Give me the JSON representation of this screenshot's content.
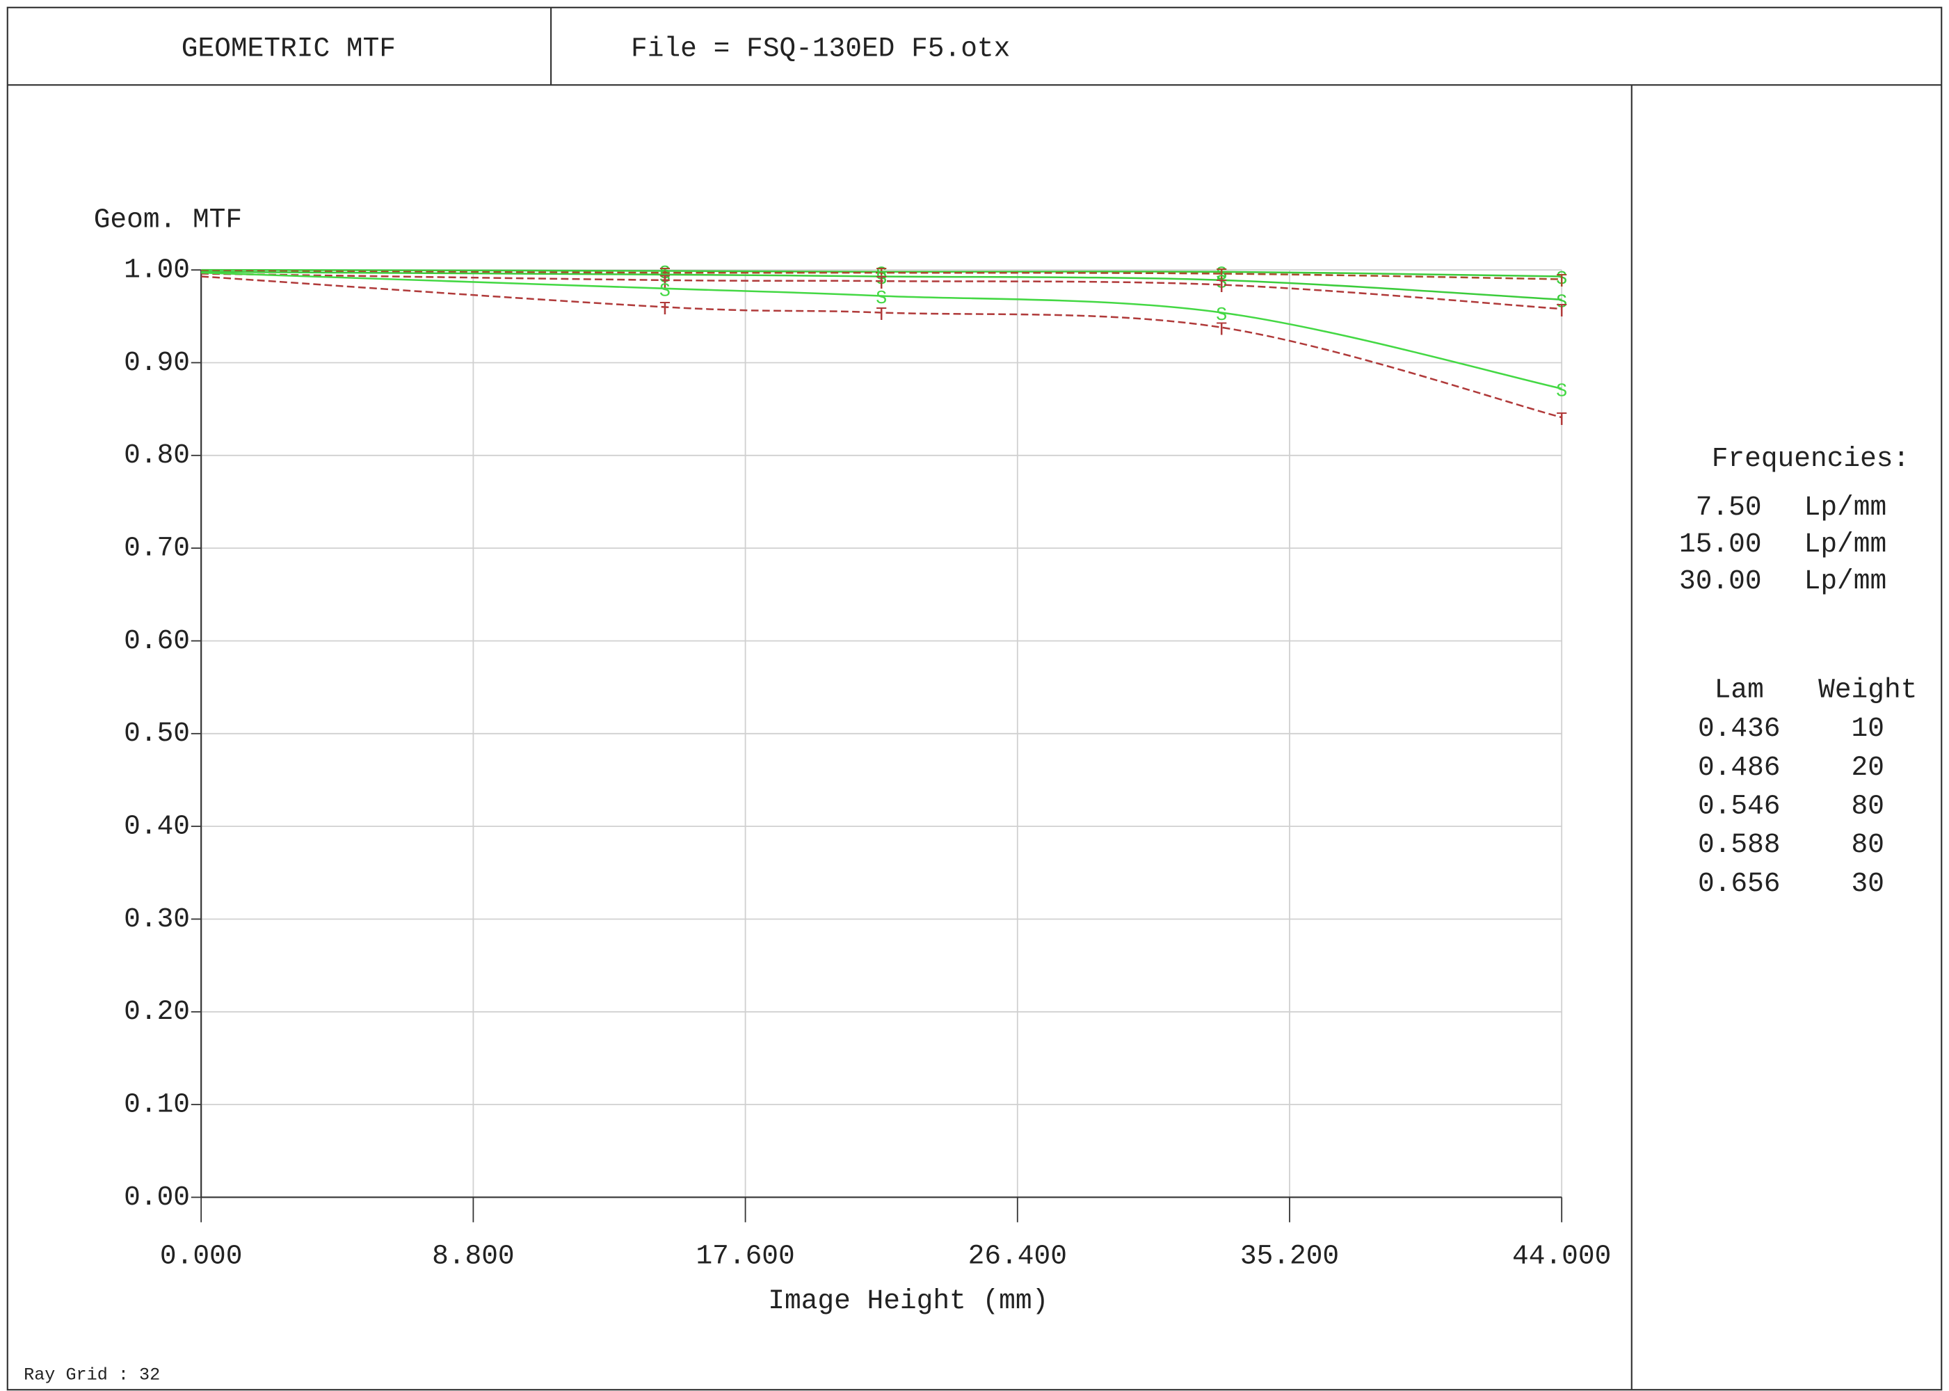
{
  "header": {
    "title": "GEOMETRIC MTF",
    "file": "File = FSQ-130ED F5.otx"
  },
  "chart_data": {
    "type": "line",
    "y_label": "Geom. MTF",
    "x_label": "Image Height (mm)",
    "x": [
      0,
      15,
      22,
      33,
      44
    ],
    "xlim": [
      0,
      44
    ],
    "xticks": [
      {
        "value": 0,
        "label": "0.000"
      },
      {
        "value": 8.8,
        "label": "8.800"
      },
      {
        "value": 17.6,
        "label": "17.600"
      },
      {
        "value": 26.4,
        "label": "26.400"
      },
      {
        "value": 35.2,
        "label": "35.200"
      },
      {
        "value": 44,
        "label": "44.000"
      }
    ],
    "ylim": [
      0,
      1
    ],
    "yticks": [
      {
        "value": 0,
        "label": "0.00"
      },
      {
        "value": 0.1,
        "label": "0.10"
      },
      {
        "value": 0.2,
        "label": "0.20"
      },
      {
        "value": 0.3,
        "label": "0.30"
      },
      {
        "value": 0.4,
        "label": "0.40"
      },
      {
        "value": 0.5,
        "label": "0.50"
      },
      {
        "value": 0.6,
        "label": "0.60"
      },
      {
        "value": 0.7,
        "label": "0.70"
      },
      {
        "value": 0.8,
        "label": "0.80"
      },
      {
        "value": 0.9,
        "label": "0.90"
      },
      {
        "value": 1,
        "label": "1.00"
      }
    ],
    "grid": true,
    "series": [
      {
        "label": "S",
        "color": "#3ccc3c",
        "dashed": false,
        "values": [
          1.0,
          0.999,
          0.998,
          0.998,
          0.993
        ]
      },
      {
        "label": "T",
        "color": "#a84a2a",
        "dashed": true,
        "values": [
          0.999,
          0.997,
          0.997,
          0.996,
          0.99
        ]
      },
      {
        "label": "S",
        "color": "#3ccc3c",
        "dashed": false,
        "values": [
          0.998,
          0.995,
          0.993,
          0.989,
          0.968
        ]
      },
      {
        "label": "T",
        "color": "#b03a3a",
        "dashed": true,
        "values": [
          0.996,
          0.989,
          0.988,
          0.984,
          0.958
        ]
      },
      {
        "label": "S",
        "color": "#44d844",
        "dashed": false,
        "values": [
          0.997,
          0.98,
          0.972,
          0.954,
          0.872
        ]
      },
      {
        "label": "T",
        "color": "#b03a3a",
        "dashed": true,
        "values": [
          0.993,
          0.96,
          0.954,
          0.938,
          0.841
        ]
      }
    ]
  },
  "panel": {
    "freq_title": "Frequencies:",
    "frequencies": [
      [
        "7.50",
        "Lp/mm"
      ],
      [
        "15.00",
        "Lp/mm"
      ],
      [
        "30.00",
        "Lp/mm"
      ]
    ],
    "wave_header": [
      "Lam",
      "Weight"
    ],
    "wavelengths": [
      [
        "0.436",
        "10"
      ],
      [
        "0.486",
        "20"
      ],
      [
        "0.546",
        "80"
      ],
      [
        "0.588",
        "80"
      ],
      [
        "0.656",
        "30"
      ]
    ]
  },
  "footer": "Ray Grid : 32"
}
